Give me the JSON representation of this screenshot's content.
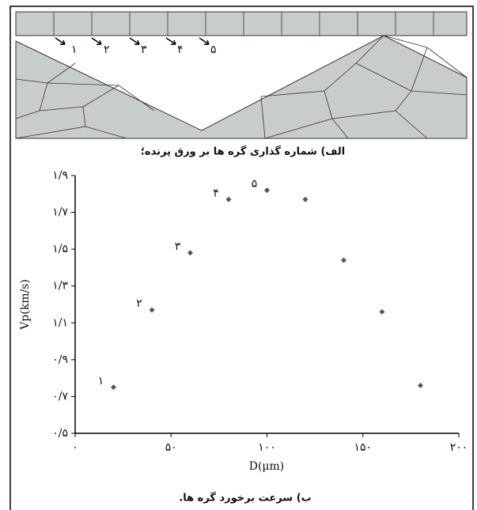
{
  "diagram": {
    "node_labels": [
      "۱",
      "۲",
      "۳",
      "۴",
      "۵"
    ],
    "caption": "الف) شماره گذاری گره ها بر ورق پرنده؛"
  },
  "chart_data": {
    "type": "scatter",
    "x": [
      20,
      40,
      60,
      80,
      100,
      120,
      140,
      160,
      180
    ],
    "values": [
      0.75,
      1.17,
      1.48,
      1.77,
      1.82,
      1.77,
      1.44,
      1.16,
      0.76
    ],
    "point_labels": [
      "۱",
      "۲",
      "۳",
      "۴",
      "۵",
      null,
      null,
      null,
      null
    ],
    "color": "#555555",
    "xlabel": "D(μm)",
    "ylabel": "Vp(km/s)",
    "xlim": [
      0,
      200
    ],
    "xticks": [
      {
        "value": 0,
        "label": "۰"
      },
      {
        "value": 50,
        "label": "۵۰"
      },
      {
        "value": 100,
        "label": "۱۰۰"
      },
      {
        "value": 150,
        "label": "۱۵۰"
      },
      {
        "value": 200,
        "label": "۲۰۰"
      }
    ],
    "ylim": [
      0.5,
      1.9
    ],
    "yticks": [
      {
        "value": 0.5,
        "label": "۰/۵"
      },
      {
        "value": 0.7,
        "label": "۰/۷"
      },
      {
        "value": 0.9,
        "label": "۰/۹"
      },
      {
        "value": 1.1,
        "label": "۱/۱"
      },
      {
        "value": 1.3,
        "label": "۱/۳"
      },
      {
        "value": 1.5,
        "label": "۱/۵"
      },
      {
        "value": 1.7,
        "label": "۱/۷"
      },
      {
        "value": 1.9,
        "label": "۱/۹"
      }
    ],
    "caption": "ب) سرعت برخورد گره ها."
  }
}
